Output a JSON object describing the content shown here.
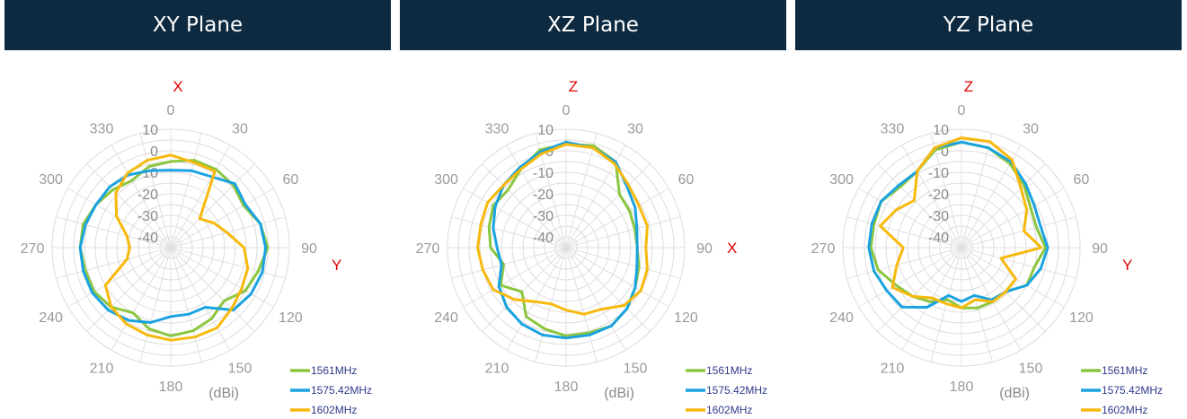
{
  "colors": {
    "banner": "#0d2a40",
    "axis_letter": "#e00000"
  },
  "chart_data": [
    {
      "type": "line",
      "projection": "polar",
      "title": "XY Plane",
      "unit": "(dBi)",
      "axis_letters": {
        "top": "X",
        "right": "Y"
      },
      "angle_ticks": [
        "0",
        "30",
        "60",
        "90",
        "120",
        "150",
        "180",
        "210",
        "240",
        "270",
        "300",
        "330"
      ],
      "radial_ticks": [
        "10",
        "0",
        "-10",
        "-20",
        "-30",
        "-40"
      ],
      "rlim": [
        -45,
        10
      ],
      "angles": [
        0,
        15,
        30,
        45,
        60,
        75,
        90,
        105,
        120,
        135,
        150,
        165,
        180,
        195,
        210,
        225,
        240,
        255,
        270,
        285,
        300,
        315,
        330,
        345
      ],
      "series": [
        {
          "name": "1561MHz",
          "color": "#8cc63f",
          "values": [
            -5,
            -3,
            -3,
            -4,
            -6,
            -2,
            0,
            -3,
            -5,
            -10,
            -7,
            -5,
            -4,
            -6,
            -10,
            -6,
            -4,
            -4,
            -3,
            -3,
            -5,
            -7,
            -9,
            -6
          ]
        },
        {
          "name": "1575.42MHz",
          "color": "#1aa3e0",
          "values": [
            -9,
            -8,
            -7,
            -3,
            -5,
            -2,
            -1,
            -1,
            -2,
            -4,
            -13,
            -13,
            -13,
            -9,
            -6,
            -4,
            -3,
            -3,
            -3,
            -4,
            -5,
            -5,
            -6,
            -8
          ]
        },
        {
          "name": "1602MHz",
          "color": "#f7b90c",
          "values": [
            -2,
            -4,
            -4,
            -26,
            -22,
            -18,
            -11,
            -8,
            -7,
            -5,
            -2,
            -2,
            -2,
            -3,
            -4,
            -6,
            -10,
            -24,
            -26,
            -24,
            -16,
            -9,
            -5,
            -3
          ]
        }
      ]
    },
    {
      "type": "line",
      "projection": "polar",
      "title": "XZ Plane",
      "unit": "(dBi)",
      "axis_letters": {
        "top": "Z",
        "right": "X"
      },
      "angle_ticks": [
        "0",
        "30",
        "60",
        "90",
        "120",
        "150",
        "180",
        "210",
        "240",
        "270",
        "300",
        "330"
      ],
      "radial_ticks": [
        "10",
        "0",
        "-10",
        "-20",
        "-30",
        "-40"
      ],
      "rlim": [
        -45,
        10
      ],
      "angles": [
        0,
        15,
        30,
        45,
        60,
        75,
        90,
        105,
        120,
        135,
        150,
        165,
        180,
        195,
        210,
        225,
        240,
        255,
        270,
        285,
        300,
        315,
        330,
        345
      ],
      "series": [
        {
          "name": "1561MHz",
          "color": "#8cc63f",
          "values": [
            3,
            4,
            1,
            -10,
            -11,
            -12,
            -12,
            -10,
            -8,
            -5,
            -3,
            -4,
            -4,
            -6,
            -8,
            -16,
            -10,
            -15,
            -10,
            -8,
            -6,
            -7,
            -3,
            2
          ]
        },
        {
          "name": "1575.42MHz",
          "color": "#1aa3e0",
          "values": [
            4,
            3,
            1,
            -5,
            -8,
            -11,
            -12,
            -11,
            -8,
            -5,
            -3,
            -3,
            -3,
            -3,
            -4,
            -6,
            -9,
            -14,
            -13,
            -10,
            -7,
            -4,
            -2,
            1
          ]
        },
        {
          "name": "1602MHz",
          "color": "#f7b90c",
          "values": [
            3,
            3,
            0,
            -4,
            -6,
            -6,
            -8,
            -6,
            -5,
            -7,
            -12,
            -13,
            -16,
            -18,
            -16,
            -11,
            -6,
            -5,
            -4,
            -4,
            -3,
            -4,
            -3,
            0
          ]
        }
      ]
    },
    {
      "type": "line",
      "projection": "polar",
      "title": "YZ Plane",
      "unit": "(dBi)",
      "axis_letters": {
        "top": "Z",
        "right": "Y"
      },
      "angle_ticks": [
        "0",
        "30",
        "60",
        "90",
        "120",
        "150",
        "180",
        "210",
        "240",
        "270",
        "300",
        "330"
      ],
      "radial_ticks": [
        "10",
        "0",
        "-10",
        "-20",
        "-30",
        "-40"
      ],
      "rlim": [
        -45,
        10
      ],
      "angles": [
        0,
        15,
        30,
        45,
        60,
        75,
        90,
        105,
        120,
        135,
        150,
        165,
        180,
        195,
        210,
        225,
        240,
        255,
        270,
        285,
        300,
        315,
        330,
        345
      ],
      "series": [
        {
          "name": "1561MHz",
          "color": "#8cc63f",
          "values": [
            4,
            3,
            0,
            -4,
            -8,
            -9,
            -6,
            -10,
            -10,
            -16,
            -16,
            -16,
            -17,
            -20,
            -16,
            -13,
            -10,
            -5,
            -3,
            -3,
            -2,
            -5,
            -4,
            2
          ]
        },
        {
          "name": "1575.42MHz",
          "color": "#1aa3e0",
          "values": [
            4,
            3,
            1,
            -3,
            -6,
            -7,
            -5,
            -7,
            -10,
            -16,
            -17,
            -22,
            -20,
            -22,
            -13,
            -6,
            -5,
            -3,
            -2,
            -2,
            -2,
            -4,
            -4,
            3
          ]
        },
        {
          "name": "1602MHz",
          "color": "#f7b90c",
          "values": [
            6,
            6,
            2,
            -6,
            -10,
            -15,
            -8,
            -26,
            -16,
            -16,
            -16,
            -20,
            -17,
            -18,
            -18,
            -13,
            -8,
            -14,
            -18,
            -6,
            -10,
            -14,
            -4,
            3
          ]
        }
      ]
    }
  ]
}
